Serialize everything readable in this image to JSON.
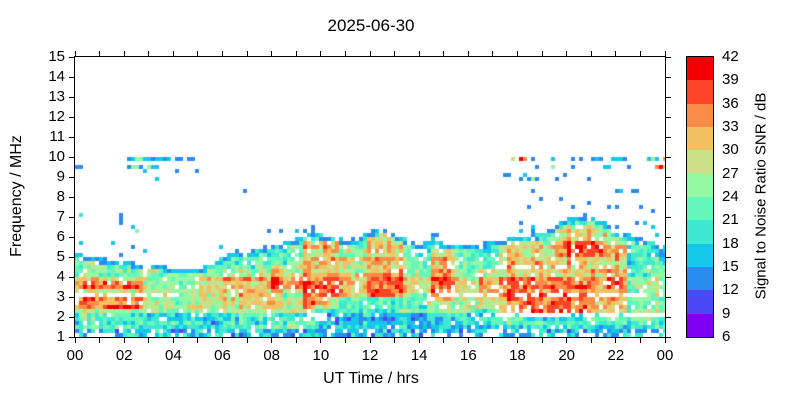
{
  "chart_data": {
    "type": "heatmap",
    "title": "2025-06-30",
    "xlabel": "UT Time / hrs",
    "ylabel": "Frequency / MHz",
    "x_range_hours": [
      0,
      24
    ],
    "y_range_mhz": [
      1,
      15
    ],
    "grid": "off",
    "x_major_tick_hours": [
      0,
      2,
      4,
      6,
      8,
      10,
      12,
      14,
      16,
      18,
      20,
      22,
      24
    ],
    "x_major_tick_labels": [
      "00",
      "02",
      "04",
      "06",
      "08",
      "10",
      "12",
      "14",
      "16",
      "18",
      "20",
      "22",
      "00"
    ],
    "x_minor_tick_step_hours": 1,
    "y_tick_mhz": [
      1,
      2,
      3,
      4,
      5,
      6,
      7,
      8,
      9,
      10,
      11,
      12,
      13,
      14,
      15
    ],
    "colorbar": {
      "label": "Signal to Noise Ratio SNR / dB",
      "min": 6,
      "max": 42,
      "tick_values": [
        6,
        9,
        12,
        15,
        18,
        21,
        24,
        27,
        30,
        33,
        36,
        39,
        42
      ],
      "colors": [
        "#7d00f2",
        "#4b49f4",
        "#2b8cf0",
        "#15c7e8",
        "#3fe8d0",
        "#63f8ba",
        "#95f8a3",
        "#c9e189",
        "#f1c262",
        "#fb8d48",
        "#fb4428",
        "#f40000"
      ]
    },
    "heatmap": {
      "seed": 20250630,
      "cell_hours": 0.162,
      "cell_mhz": 0.2,
      "envelope_step_hours": 0.5,
      "envelope_top_mhz": [
        5.3,
        5.1,
        4.95,
        4.85,
        4.8,
        4.7,
        4.6,
        4.55,
        4.45,
        4.4,
        4.45,
        4.6,
        5.0,
        5.35,
        5.2,
        5.45,
        5.6,
        5.7,
        5.9,
        6.3,
        6.1,
        6.05,
        5.8,
        5.9,
        6.3,
        6.4,
        6.1,
        5.9,
        5.6,
        5.95,
        5.6,
        5.55,
        5.6,
        5.7,
        5.8,
        5.9,
        6.0,
        6.1,
        6.2,
        6.6,
        6.95,
        7.0,
        6.95,
        6.7,
        6.3,
        6.1,
        5.9,
        5.7,
        5.5
      ],
      "bands": [
        {
          "f0": 1.0,
          "f1": 1.35,
          "mean": 15
        },
        {
          "f0": 1.35,
          "f1": 2.25,
          "mean": 21
        },
        {
          "f0": 2.25,
          "f1": 3.1,
          "mean": 27
        },
        {
          "f0": 3.1,
          "f1": 4.0,
          "mean": 28
        },
        {
          "f0": 4.0,
          "f1": 5.0,
          "mean": 24
        },
        {
          "f0": 5.0,
          "f1": 7.3,
          "mean": 22
        }
      ],
      "hot_regions": [
        {
          "t0": 0.0,
          "t1": 2.8,
          "f0": 3.3,
          "f1": 3.8,
          "boost": 8
        },
        {
          "t0": 0.0,
          "t1": 2.8,
          "f0": 2.3,
          "f1": 3.0,
          "boost": 6
        },
        {
          "t0": 1.3,
          "t1": 2.6,
          "f0": 2.35,
          "f1": 2.6,
          "boost": 8
        },
        {
          "t0": 5.0,
          "t1": 8.5,
          "f0": 2.4,
          "f1": 4.3,
          "boost": 4
        },
        {
          "t0": 8.0,
          "t1": 9.2,
          "f0": 3.3,
          "f1": 4.6,
          "boost": 5
        },
        {
          "t0": 9.2,
          "t1": 10.7,
          "f0": 2.5,
          "f1": 5.9,
          "boost": 9
        },
        {
          "t0": 10.7,
          "t1": 11.9,
          "f0": 3.2,
          "f1": 5.5,
          "boost": 3
        },
        {
          "t0": 11.9,
          "t1": 13.3,
          "f0": 3.0,
          "f1": 6.15,
          "boost": 8
        },
        {
          "t0": 14.5,
          "t1": 15.4,
          "f0": 2.7,
          "f1": 5.5,
          "boost": 8
        },
        {
          "t0": 16.3,
          "t1": 17.2,
          "f0": 2.6,
          "f1": 4.4,
          "boost": 5
        },
        {
          "t0": 17.2,
          "t1": 22.4,
          "f0": 2.1,
          "f1": 5.7,
          "boost": 8
        },
        {
          "t0": 19.4,
          "t1": 21.5,
          "f0": 5.0,
          "f1": 6.6,
          "boost": 7
        },
        {
          "t0": 9.7,
          "t1": 14.2,
          "f0": 1.4,
          "f1": 2.9,
          "boost": -5
        },
        {
          "t0": 14.2,
          "t1": 16.9,
          "f0": 1.4,
          "f1": 2.5,
          "boost": -3
        },
        {
          "t0": 3.0,
          "t1": 5.6,
          "f0": 1.6,
          "f1": 4.1,
          "boost": -2
        },
        {
          "t0": 22.4,
          "t1": 24.0,
          "f0": 2.3,
          "f1": 5.6,
          "boost": -3
        }
      ],
      "gaps": [
        {
          "t0": 0.0,
          "t1": 4.2,
          "f": 3.08,
          "half": 0.07,
          "p": 0.75
        },
        {
          "t0": 14.8,
          "t1": 24.0,
          "f": 3.08,
          "half": 0.07,
          "p": 0.6
        },
        {
          "t0": 16.5,
          "t1": 24.0,
          "f": 2.12,
          "half": 0.06,
          "p": 0.75
        },
        {
          "t0": 2.0,
          "t1": 8.5,
          "f": 2.02,
          "half": 0.06,
          "p": 0.55
        },
        {
          "t0": 17.0,
          "t1": 21.8,
          "f": 4.55,
          "half": 0.05,
          "p": 0.45
        },
        {
          "t0": 9.2,
          "t1": 10.8,
          "f": 2.0,
          "half": 0.2,
          "p": 0.45
        }
      ],
      "fringe": {
        "depth": 0.25,
        "min": 12,
        "max": 19
      },
      "bottom": {
        "f": 1.3,
        "min": 11,
        "max": 22
      },
      "dropout": {
        "base": 0.07,
        "bottom_extra": 0.22,
        "fringe_extra": 0.12
      },
      "noise": {
        "row": 2.5,
        "col": 2.5,
        "cell": 4,
        "block_cols": 16
      },
      "stray_p": 0.03,
      "stray_band_mhz": 0.9
    },
    "scatter_points": [
      [
        0.1,
        9.55,
        13
      ],
      [
        0.22,
        9.4,
        13
      ],
      [
        0.3,
        7.15,
        19
      ],
      [
        1.85,
        7.1,
        13
      ],
      [
        1.85,
        6.9,
        13
      ],
      [
        1.85,
        6.7,
        13
      ],
      [
        2.3,
        6.45,
        16
      ],
      [
        2.45,
        6.35,
        24
      ],
      [
        2.15,
        9.8,
        13
      ],
      [
        2.32,
        9.8,
        16
      ],
      [
        2.48,
        9.8,
        24
      ],
      [
        2.6,
        9.8,
        16
      ],
      [
        2.72,
        9.8,
        24
      ],
      [
        2.85,
        9.8,
        16
      ],
      [
        2.98,
        9.8,
        16
      ],
      [
        3.1,
        9.8,
        13
      ],
      [
        3.25,
        9.8,
        16
      ],
      [
        3.4,
        9.8,
        16
      ],
      [
        3.55,
        9.8,
        16
      ],
      [
        3.7,
        9.8,
        13
      ],
      [
        3.85,
        9.8,
        16
      ],
      [
        4.1,
        9.8,
        13
      ],
      [
        4.25,
        9.8,
        13
      ],
      [
        4.7,
        9.8,
        13
      ],
      [
        4.85,
        9.8,
        13
      ],
      [
        2.15,
        9.4,
        13
      ],
      [
        2.35,
        9.45,
        24
      ],
      [
        2.5,
        9.4,
        24
      ],
      [
        2.62,
        9.4,
        24
      ],
      [
        2.75,
        9.45,
        13
      ],
      [
        2.9,
        9.35,
        16
      ],
      [
        3.02,
        9.4,
        24
      ],
      [
        3.15,
        9.4,
        16
      ],
      [
        3.3,
        9.4,
        16
      ],
      [
        3.35,
        8.9,
        16
      ],
      [
        4.15,
        9.25,
        13
      ],
      [
        5.0,
        9.25,
        13
      ],
      [
        6.9,
        8.35,
        13
      ],
      [
        9.35,
        6.3,
        13
      ],
      [
        9.6,
        6.5,
        13
      ],
      [
        9.6,
        6.35,
        13
      ],
      [
        14.55,
        6.05,
        13
      ],
      [
        14.75,
        6.05,
        13
      ],
      [
        17.7,
        9.95,
        27
      ],
      [
        18.05,
        9.95,
        33
      ],
      [
        18.15,
        9.95,
        40
      ],
      [
        18.3,
        9.95,
        33
      ],
      [
        18.55,
        9.9,
        13
      ],
      [
        19.3,
        9.9,
        16
      ],
      [
        19.45,
        9.9,
        16
      ],
      [
        20.2,
        9.9,
        13
      ],
      [
        20.5,
        9.9,
        13
      ],
      [
        20.95,
        9.95,
        13
      ],
      [
        21.1,
        9.9,
        16
      ],
      [
        21.25,
        9.95,
        13
      ],
      [
        21.85,
        9.9,
        16
      ],
      [
        22.0,
        9.9,
        16
      ],
      [
        22.15,
        9.9,
        16
      ],
      [
        22.3,
        9.9,
        13
      ],
      [
        23.25,
        9.9,
        16
      ],
      [
        23.4,
        9.95,
        24
      ],
      [
        23.55,
        9.9,
        16
      ],
      [
        23.85,
        9.9,
        16
      ],
      [
        23.95,
        9.95,
        33
      ],
      [
        18.7,
        9.5,
        13
      ],
      [
        19.35,
        9.55,
        24
      ],
      [
        20.25,
        9.5,
        13
      ],
      [
        21.5,
        9.55,
        16
      ],
      [
        21.65,
        9.5,
        16
      ],
      [
        22.5,
        9.5,
        13
      ],
      [
        23.6,
        9.5,
        33
      ],
      [
        23.7,
        9.45,
        40
      ],
      [
        23.85,
        9.5,
        16
      ],
      [
        23.95,
        9.55,
        27
      ],
      [
        17.45,
        9.15,
        13
      ],
      [
        17.6,
        9.05,
        13
      ],
      [
        18.0,
        8.95,
        13
      ],
      [
        18.2,
        9.1,
        16
      ],
      [
        18.35,
        8.9,
        13
      ],
      [
        18.5,
        8.85,
        24
      ],
      [
        18.65,
        8.9,
        13
      ],
      [
        19.5,
        8.9,
        13
      ],
      [
        19.85,
        9.2,
        13
      ],
      [
        20.8,
        8.8,
        13
      ],
      [
        18.55,
        8.4,
        13
      ],
      [
        21.95,
        8.3,
        13
      ],
      [
        22.1,
        8.25,
        16
      ],
      [
        22.6,
        8.3,
        13
      ],
      [
        22.75,
        8.35,
        13
      ],
      [
        18.4,
        7.6,
        13
      ],
      [
        18.9,
        7.9,
        13
      ],
      [
        19.7,
        7.85,
        13
      ],
      [
        20.2,
        7.6,
        13
      ],
      [
        20.85,
        7.8,
        13
      ],
      [
        21.7,
        7.6,
        13
      ],
      [
        21.9,
        7.45,
        13
      ],
      [
        23.0,
        7.5,
        13
      ],
      [
        23.45,
        7.4,
        13
      ],
      [
        23.05,
        6.65,
        16
      ],
      [
        23.5,
        6.55,
        16
      ]
    ]
  }
}
